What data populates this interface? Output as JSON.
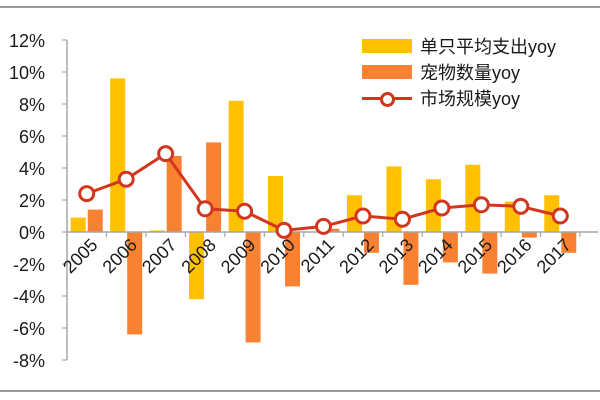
{
  "chart_data": {
    "type": "bar+line",
    "title": "",
    "xlabel": "",
    "ylabel": "",
    "categories": [
      "2005",
      "2006",
      "2007",
      "2008",
      "2009",
      "2010",
      "2011",
      "2012",
      "2013",
      "2014",
      "2015",
      "2016",
      "2017"
    ],
    "series": [
      {
        "name": "单只平均支出yoy",
        "type": "bar",
        "color": "#FFC000",
        "values": [
          0.9,
          9.6,
          0.1,
          -4.2,
          8.2,
          3.5,
          0.0,
          2.3,
          4.1,
          3.3,
          4.2,
          1.9,
          2.3
        ]
      },
      {
        "name": "宠物数量yoy",
        "type": "bar",
        "color": "#F98232",
        "values": [
          1.4,
          -6.4,
          4.75,
          5.6,
          -6.9,
          -3.4,
          0.2,
          -1.3,
          -3.3,
          -1.9,
          -2.6,
          -0.35,
          -1.3
        ]
      },
      {
        "name": "市场规模yoy",
        "type": "line",
        "color": "#D2371E",
        "values": [
          2.4,
          3.3,
          4.9,
          1.45,
          1.3,
          0.1,
          0.35,
          1.0,
          0.8,
          1.5,
          1.7,
          1.6,
          1.0
        ]
      }
    ],
    "ylim": [
      -8,
      12
    ],
    "yticks": [
      "12%",
      "10%",
      "8%",
      "6%",
      "4%",
      "2%",
      "0%",
      "-2%",
      "-4%",
      "-6%",
      "-8%"
    ],
    "ytick_values": [
      12,
      10,
      8,
      6,
      4,
      2,
      0,
      -2,
      -4,
      -6,
      -8
    ],
    "grid": false,
    "legend_position": "top-right"
  },
  "legend": {
    "items": [
      {
        "label": "单只平均支出yoy",
        "color": "#FFC000",
        "kind": "bar"
      },
      {
        "label": "宠物数量yoy",
        "color": "#F98232",
        "kind": "bar"
      },
      {
        "label": "市场规模yoy",
        "color": "#D2371E",
        "kind": "line"
      }
    ]
  }
}
